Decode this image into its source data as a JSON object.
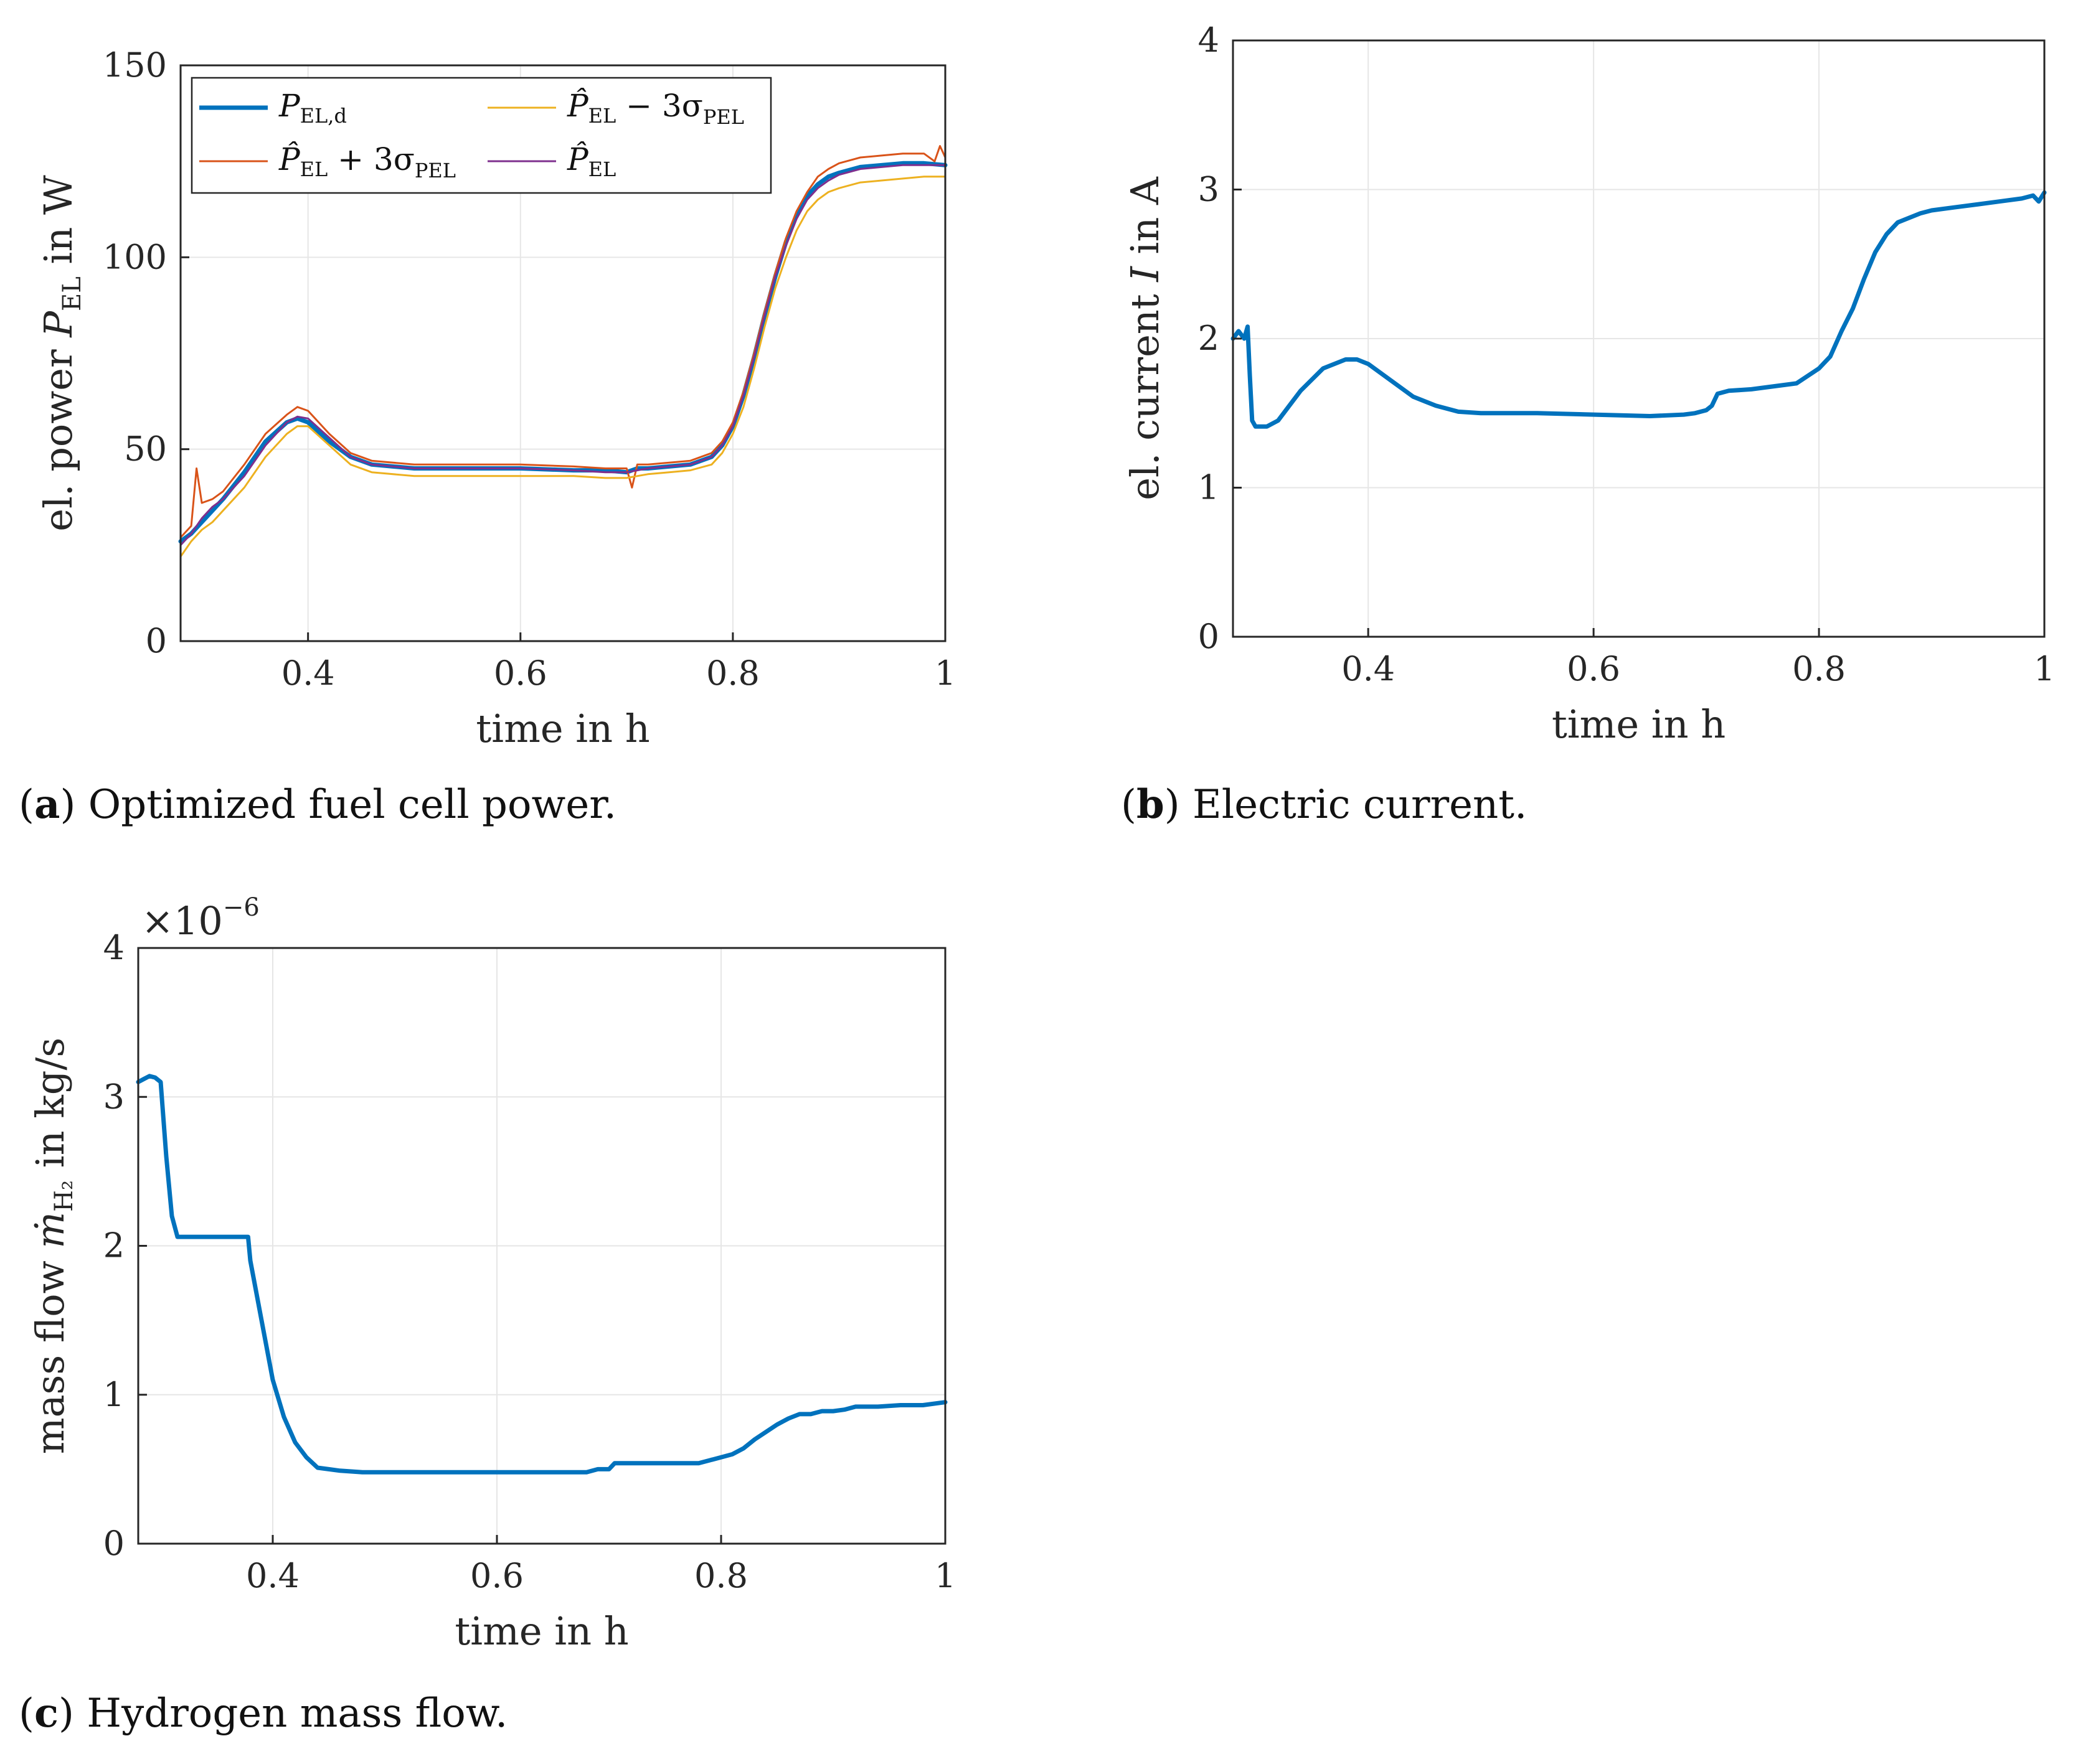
{
  "captions": {
    "a": {
      "label": "a",
      "text": "Optimized fuel cell power."
    },
    "b": {
      "label": "b",
      "text": "Electric current."
    },
    "c": {
      "label": "c",
      "text": "Hydrogen mass flow."
    }
  },
  "colors": {
    "blue": "#0072BD",
    "red": "#D95319",
    "yellow": "#EDB120",
    "purple": "#7E2F8E",
    "grid": "#e6e6e6",
    "axis": "#262626"
  },
  "chart_data": [
    {
      "id": "a",
      "type": "line",
      "xlabel": "time in h",
      "ylabel": "el. power P_EL in W",
      "ylabel_parts": {
        "pre": "el. power ",
        "sym": "P",
        "sub": "EL",
        "post": " in W"
      },
      "xlim": [
        0.28,
        1.0
      ],
      "ylim": [
        0,
        150
      ],
      "xticks": [
        0.4,
        0.6,
        0.8,
        1
      ],
      "xtick_labels": [
        "0.4",
        "0.6",
        "0.8",
        "1"
      ],
      "yticks": [
        0,
        50,
        100,
        150
      ],
      "ytick_labels": [
        "0",
        "50",
        "100",
        "150"
      ],
      "legend_position": "top-left",
      "legend": [
        {
          "key": "pd",
          "label": "P_EL,d",
          "sym": "P",
          "sub": "EL,d",
          "extra": ""
        },
        {
          "key": "minus",
          "label": "P̂_EL − 3σ_PEL",
          "sym": "P̂",
          "sub": "EL",
          "extra": " − 3σ",
          "extra_sub": "PEL"
        },
        {
          "key": "plus",
          "label": "P̂_EL + 3σ_PEL",
          "sym": "P̂",
          "sub": "EL",
          "extra": " + 3σ",
          "extra_sub": "PEL"
        },
        {
          "key": "hat",
          "label": "P̂_EL",
          "sym": "P̂",
          "sub": "EL",
          "extra": ""
        }
      ],
      "series": [
        {
          "name": "P_EL,d",
          "key": "pd",
          "color": "#0072BD",
          "width": 7,
          "x": [
            0.28,
            0.29,
            0.3,
            0.31,
            0.32,
            0.34,
            0.36,
            0.38,
            0.39,
            0.4,
            0.42,
            0.44,
            0.46,
            0.5,
            0.55,
            0.6,
            0.65,
            0.68,
            0.7,
            0.71,
            0.72,
            0.74,
            0.76,
            0.78,
            0.79,
            0.8,
            0.81,
            0.82,
            0.83,
            0.84,
            0.85,
            0.86,
            0.87,
            0.88,
            0.89,
            0.9,
            0.92,
            0.94,
            0.96,
            0.98,
            1.0
          ],
          "y": [
            26,
            28,
            31,
            34,
            37,
            44,
            52,
            57,
            58,
            57,
            52,
            48,
            46,
            45,
            45,
            45,
            44.5,
            44.5,
            44,
            45,
            45,
            45.5,
            46,
            48,
            51,
            56,
            64,
            74,
            85,
            95,
            104,
            111,
            116,
            119,
            121,
            122,
            123.5,
            124,
            124.5,
            124.5,
            124
          ]
        },
        {
          "name": "P̂_EL + 3σ_PEL",
          "key": "plus",
          "color": "#D95319",
          "width": 3,
          "x": [
            0.28,
            0.29,
            0.295,
            0.3,
            0.31,
            0.32,
            0.34,
            0.36,
            0.38,
            0.39,
            0.4,
            0.42,
            0.44,
            0.46,
            0.5,
            0.55,
            0.6,
            0.65,
            0.68,
            0.7,
            0.705,
            0.71,
            0.72,
            0.74,
            0.76,
            0.78,
            0.79,
            0.8,
            0.81,
            0.82,
            0.83,
            0.84,
            0.85,
            0.86,
            0.87,
            0.88,
            0.89,
            0.9,
            0.92,
            0.94,
            0.96,
            0.98,
            0.99,
            0.995,
            1.0
          ],
          "y": [
            27,
            30,
            45,
            36,
            37,
            39,
            46,
            54,
            59,
            61,
            60,
            54,
            49,
            47,
            46,
            46,
            46,
            45.5,
            45,
            45,
            40,
            46,
            46,
            46.5,
            47,
            49,
            52,
            57,
            65,
            75,
            86,
            96,
            105,
            112,
            117,
            121,
            123,
            124.5,
            126,
            126.5,
            127,
            127,
            125,
            129,
            126
          ]
        },
        {
          "name": "P̂_EL − 3σ_PEL",
          "key": "minus",
          "color": "#EDB120",
          "width": 3,
          "x": [
            0.28,
            0.29,
            0.3,
            0.31,
            0.32,
            0.34,
            0.36,
            0.38,
            0.39,
            0.4,
            0.42,
            0.44,
            0.46,
            0.5,
            0.55,
            0.6,
            0.65,
            0.68,
            0.7,
            0.71,
            0.72,
            0.74,
            0.76,
            0.78,
            0.79,
            0.8,
            0.81,
            0.82,
            0.83,
            0.84,
            0.85,
            0.86,
            0.87,
            0.88,
            0.89,
            0.9,
            0.92,
            0.94,
            0.96,
            0.98,
            1.0
          ],
          "y": [
            22,
            26,
            29,
            31,
            34,
            40,
            48,
            54,
            56,
            56,
            51,
            46,
            44,
            43,
            43,
            43,
            43,
            42.5,
            42.5,
            43,
            43.5,
            44,
            44.5,
            46,
            49,
            54,
            61,
            71,
            82,
            92,
            100,
            107,
            112,
            115,
            117,
            118,
            119.5,
            120,
            120.5,
            121,
            121
          ]
        },
        {
          "name": "P̂_EL",
          "key": "hat",
          "color": "#7E2F8E",
          "width": 3,
          "x": [
            0.28,
            0.29,
            0.3,
            0.31,
            0.32,
            0.34,
            0.36,
            0.38,
            0.39,
            0.4,
            0.42,
            0.44,
            0.46,
            0.5,
            0.55,
            0.6,
            0.65,
            0.68,
            0.7,
            0.71,
            0.72,
            0.74,
            0.76,
            0.78,
            0.79,
            0.8,
            0.81,
            0.82,
            0.83,
            0.84,
            0.85,
            0.86,
            0.87,
            0.88,
            0.89,
            0.9,
            0.92,
            0.94,
            0.96,
            0.98,
            1.0
          ],
          "y": [
            25,
            28,
            32,
            35,
            37,
            43,
            51,
            57,
            58.5,
            58,
            53,
            48,
            46,
            45,
            45,
            45,
            44.5,
            44,
            44,
            44.5,
            45,
            45.5,
            46,
            48,
            51,
            56,
            64,
            74,
            85,
            95,
            103,
            110,
            115,
            118,
            120,
            121.5,
            123,
            123.5,
            124,
            124,
            124
          ]
        }
      ]
    },
    {
      "id": "b",
      "type": "line",
      "xlabel": "time in h",
      "ylabel": "el. current I in A",
      "ylabel_parts": {
        "pre": "el. current ",
        "sym": "I",
        "sub": "",
        "post": " in A"
      },
      "xlim": [
        0.28,
        1.0
      ],
      "ylim": [
        0,
        4
      ],
      "xticks": [
        0.4,
        0.6,
        0.8,
        1
      ],
      "xtick_labels": [
        "0.4",
        "0.6",
        "0.8",
        "1"
      ],
      "yticks": [
        0,
        1,
        2,
        3,
        4
      ],
      "ytick_labels": [
        "0",
        "1",
        "2",
        "3",
        "4"
      ],
      "series": [
        {
          "name": "I",
          "color": "#0072BD",
          "width": 7,
          "x": [
            0.28,
            0.285,
            0.29,
            0.293,
            0.295,
            0.297,
            0.3,
            0.31,
            0.32,
            0.33,
            0.34,
            0.36,
            0.38,
            0.39,
            0.4,
            0.42,
            0.44,
            0.46,
            0.48,
            0.5,
            0.55,
            0.6,
            0.65,
            0.68,
            0.69,
            0.7,
            0.705,
            0.71,
            0.72,
            0.74,
            0.76,
            0.78,
            0.8,
            0.81,
            0.82,
            0.83,
            0.84,
            0.85,
            0.86,
            0.87,
            0.88,
            0.89,
            0.9,
            0.92,
            0.94,
            0.96,
            0.98,
            0.99,
            0.995,
            1.0
          ],
          "y": [
            2.0,
            2.05,
            2.0,
            2.08,
            1.75,
            1.45,
            1.41,
            1.41,
            1.45,
            1.55,
            1.65,
            1.8,
            1.86,
            1.86,
            1.83,
            1.72,
            1.61,
            1.55,
            1.51,
            1.5,
            1.5,
            1.49,
            1.48,
            1.49,
            1.5,
            1.52,
            1.55,
            1.63,
            1.65,
            1.66,
            1.68,
            1.7,
            1.8,
            1.88,
            2.05,
            2.2,
            2.4,
            2.58,
            2.7,
            2.78,
            2.81,
            2.84,
            2.86,
            2.88,
            2.9,
            2.92,
            2.94,
            2.96,
            2.92,
            2.98
          ]
        }
      ]
    },
    {
      "id": "c",
      "type": "line",
      "xlabel": "time in h",
      "ylabel": "mass flow ṁ_H2 in kg/s",
      "ylabel_parts": {
        "pre": "mass flow ",
        "sym": "ṁ",
        "sub": "H₂",
        "post": " in kg/s"
      },
      "exponent_label": "×10",
      "exponent_power": "−6",
      "xlim": [
        0.28,
        1.0
      ],
      "ylim": [
        0,
        4
      ],
      "xticks": [
        0.4,
        0.6,
        0.8,
        1
      ],
      "xtick_labels": [
        "0.4",
        "0.6",
        "0.8",
        "1"
      ],
      "yticks": [
        0,
        1,
        2,
        3,
        4
      ],
      "ytick_labels": [
        "0",
        "1",
        "2",
        "3",
        "4"
      ],
      "series": [
        {
          "name": "ṁ_H2",
          "color": "#0072BD",
          "width": 7,
          "x": [
            0.28,
            0.285,
            0.29,
            0.295,
            0.3,
            0.305,
            0.31,
            0.315,
            0.33,
            0.35,
            0.378,
            0.38,
            0.39,
            0.4,
            0.41,
            0.42,
            0.43,
            0.44,
            0.45,
            0.46,
            0.48,
            0.5,
            0.55,
            0.6,
            0.65,
            0.68,
            0.69,
            0.7,
            0.705,
            0.72,
            0.74,
            0.76,
            0.78,
            0.79,
            0.8,
            0.81,
            0.82,
            0.83,
            0.84,
            0.85,
            0.86,
            0.87,
            0.88,
            0.89,
            0.9,
            0.91,
            0.92,
            0.94,
            0.96,
            0.98,
            1.0
          ],
          "y": [
            3.1,
            3.12,
            3.14,
            3.13,
            3.1,
            2.6,
            2.2,
            2.06,
            2.06,
            2.06,
            2.06,
            1.9,
            1.5,
            1.1,
            0.85,
            0.68,
            0.58,
            0.51,
            0.5,
            0.49,
            0.48,
            0.48,
            0.48,
            0.48,
            0.48,
            0.48,
            0.5,
            0.5,
            0.54,
            0.54,
            0.54,
            0.54,
            0.54,
            0.56,
            0.58,
            0.6,
            0.64,
            0.7,
            0.75,
            0.8,
            0.84,
            0.87,
            0.87,
            0.89,
            0.89,
            0.9,
            0.92,
            0.92,
            0.93,
            0.93,
            0.95
          ]
        }
      ]
    }
  ]
}
